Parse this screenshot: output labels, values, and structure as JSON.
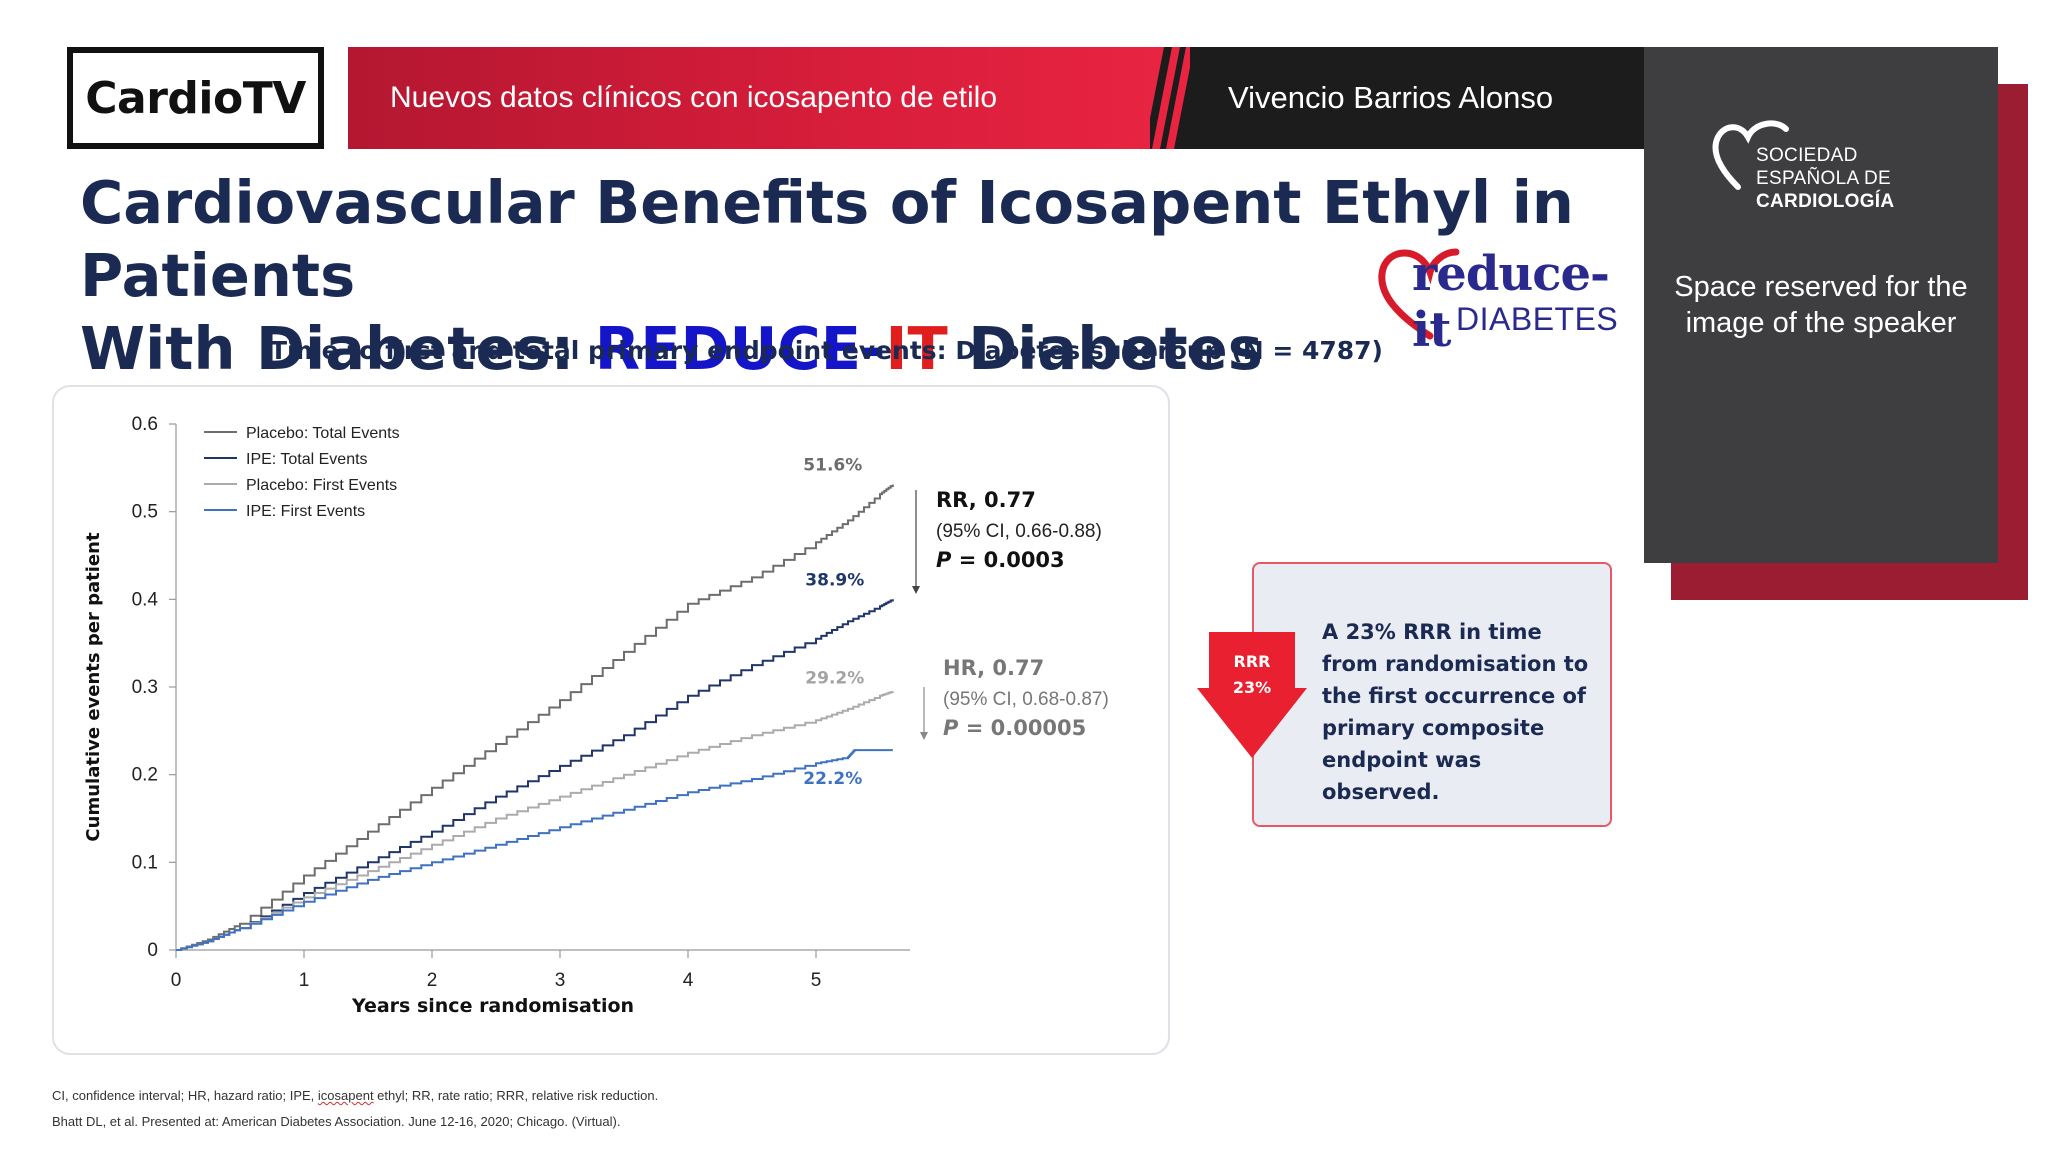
{
  "header": {
    "brand": "CardioTV",
    "banner_title": "Nuevos datos clínicos con icosapento de etilo",
    "speaker_name": "Vivencio Barrios Alonso"
  },
  "speaker_panel": {
    "society_line1": "SOCIEDAD",
    "society_line2": "ESPAÑOLA DE",
    "society_line3": "CARDIOLOGÍA",
    "placeholder_line1": "Space reserved for the",
    "placeholder_line2": "image of the speaker"
  },
  "slide": {
    "title_line1": "Cardiovascular Benefits of Icosapent Ethyl in Patients",
    "title_line2_pre": "With Diabetes: ",
    "title_line2_blue": "REDUCE-",
    "title_line2_red": "IT",
    "title_line2_post": " Diabetes",
    "logo_word": "reduce-it",
    "logo_sub": "DIABETES",
    "subtitle": "Time to first and total primary endpoint events: Diabetes subgroup (N = 4787)"
  },
  "callout": {
    "arrow_label1": "RRR",
    "arrow_label2": "23%",
    "text": "A 23% RRR in time from randomisation to the first occurrence of primary composite endpoint was observed."
  },
  "footnotes": {
    "abbrev_pre": "CI, confidence interval; HR, hazard ratio; IPE, ",
    "abbrev_squiggle": "icosapent",
    "abbrev_post": " ethyl; RR, rate ratio; RRR, relative risk reduction.",
    "reference": "Bhatt DL, et al. Presented at: American Diabetes Association. June 12-16, 2020; Chicago. (Virtual)."
  },
  "colors": {
    "placebo_total": "#6d6d6d",
    "ipe_total": "#1f3668",
    "placebo_first": "#ababab",
    "ipe_first": "#3f72c0",
    "red_accent": "#e8202f",
    "navy": "#1a2a52"
  },
  "chart_data": {
    "type": "line",
    "xlabel": "Years since randomisation",
    "ylabel": "Cumulative events per patient",
    "xlim": [
      0,
      5.8
    ],
    "ylim": [
      0,
      0.6
    ],
    "x_ticks": [
      "0",
      "1",
      "2",
      "3",
      "4",
      "5"
    ],
    "y_ticks": [
      "0",
      "0.1",
      "0.2",
      "0.3",
      "0.4",
      "0.5",
      "0.6"
    ],
    "legend_position": "top-left",
    "series": [
      {
        "name": "Placebo: Total Events",
        "color": "#6d6d6d",
        "end_label": "51.6%",
        "x": [
          0,
          0.25,
          0.5,
          1,
          1.5,
          2,
          2.5,
          3,
          3.5,
          4,
          4.5,
          5,
          5.25,
          5.5,
          5.6
        ],
        "y": [
          0,
          0.012,
          0.03,
          0.085,
          0.135,
          0.185,
          0.235,
          0.285,
          0.34,
          0.395,
          0.425,
          0.465,
          0.49,
          0.52,
          0.531
        ]
      },
      {
        "name": "IPE: Total Events",
        "color": "#1f3668",
        "end_label": "38.9%",
        "x": [
          0,
          0.25,
          0.5,
          1,
          1.5,
          2,
          2.5,
          3,
          3.5,
          4,
          4.5,
          5,
          5.25,
          5.5,
          5.6
        ],
        "y": [
          0,
          0.01,
          0.025,
          0.065,
          0.1,
          0.135,
          0.175,
          0.21,
          0.245,
          0.29,
          0.325,
          0.355,
          0.375,
          0.392,
          0.4
        ]
      },
      {
        "name": "Placebo: First Events",
        "color": "#ababab",
        "end_label": "29.2%",
        "x": [
          0,
          0.25,
          0.5,
          1,
          1.5,
          2,
          2.5,
          3,
          3.5,
          4,
          4.5,
          5,
          5.25,
          5.5,
          5.6
        ],
        "y": [
          0,
          0.01,
          0.025,
          0.06,
          0.09,
          0.12,
          0.15,
          0.175,
          0.2,
          0.225,
          0.245,
          0.262,
          0.275,
          0.29,
          0.295
        ]
      },
      {
        "name": "IPE: First Events",
        "color": "#3f72c0",
        "end_label": "22.2%",
        "x": [
          0,
          0.25,
          0.5,
          1,
          1.5,
          2,
          2.5,
          3,
          3.5,
          4,
          4.5,
          5,
          5.25,
          5.3,
          5.6
        ],
        "y": [
          0,
          0.01,
          0.025,
          0.055,
          0.08,
          0.1,
          0.12,
          0.14,
          0.16,
          0.18,
          0.195,
          0.213,
          0.22,
          0.228,
          0.228
        ]
      }
    ],
    "annotations": [
      {
        "label": "RR, 0.77",
        "ci": "(95% CI, 0.66-0.88)",
        "p_label": "P",
        "p_value": " = 0.0003",
        "style": "dark"
      },
      {
        "label": "HR, 0.77",
        "ci": "(95% CI, 0.68-0.87)",
        "p_label": "P",
        "p_value": " = 0.00005",
        "style": "grey"
      }
    ]
  }
}
